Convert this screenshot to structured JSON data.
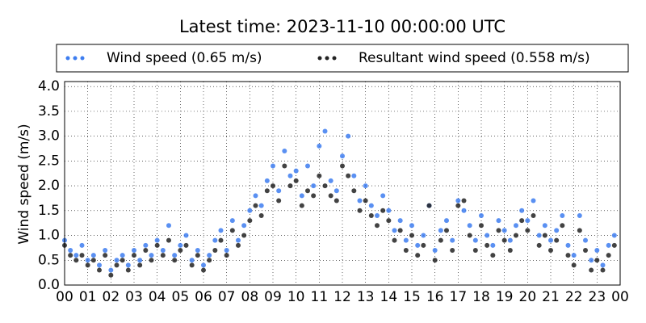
{
  "chart_data": {
    "type": "scatter",
    "title": "Latest time: 2023-11-10 00:00:00 UTC",
    "y_label": "Wind speed (m/s)",
    "xlim": [
      0,
      24
    ],
    "ylim": [
      0,
      4.1
    ],
    "xticks": [
      {
        "value": 0,
        "label": "00"
      },
      {
        "value": 1,
        "label": "01"
      },
      {
        "value": 2,
        "label": "02"
      },
      {
        "value": 3,
        "label": "03"
      },
      {
        "value": 4,
        "label": "04"
      },
      {
        "value": 5,
        "label": "05"
      },
      {
        "value": 6,
        "label": "06"
      },
      {
        "value": 7,
        "label": "07"
      },
      {
        "value": 8,
        "label": "08"
      },
      {
        "value": 9,
        "label": "09"
      },
      {
        "value": 10,
        "label": "10"
      },
      {
        "value": 11,
        "label": "11"
      },
      {
        "value": 12,
        "label": "12"
      },
      {
        "value": 13,
        "label": "13"
      },
      {
        "value": 14,
        "label": "14"
      },
      {
        "value": 15,
        "label": "15"
      },
      {
        "value": 16,
        "label": "16"
      },
      {
        "value": 17,
        "label": "17"
      },
      {
        "value": 18,
        "label": "18"
      },
      {
        "value": 19,
        "label": "19"
      },
      {
        "value": 20,
        "label": "20"
      },
      {
        "value": 21,
        "label": "21"
      },
      {
        "value": 22,
        "label": "22"
      },
      {
        "value": 23,
        "label": "23"
      },
      {
        "value": 24,
        "label": "00"
      }
    ],
    "yticks": [
      {
        "value": 0,
        "label": "0.0"
      },
      {
        "value": 0.5,
        "label": "0.5"
      },
      {
        "value": 1,
        "label": "1.0"
      },
      {
        "value": 1.5,
        "label": "1.5"
      },
      {
        "value": 2,
        "label": "2.0"
      },
      {
        "value": 2.5,
        "label": "2.5"
      },
      {
        "value": 3,
        "label": "3.0"
      },
      {
        "value": 3.5,
        "label": "3.5"
      },
      {
        "value": 4,
        "label": "4.0"
      }
    ],
    "grid": true,
    "x": [
      0,
      0.25,
      0.5,
      0.75,
      1,
      1.25,
      1.5,
      1.75,
      2,
      2.25,
      2.5,
      2.75,
      3,
      3.25,
      3.5,
      3.75,
      4,
      4.25,
      4.5,
      4.75,
      5,
      5.25,
      5.5,
      5.75,
      6,
      6.25,
      6.5,
      6.75,
      7,
      7.25,
      7.5,
      7.75,
      8,
      8.25,
      8.5,
      8.75,
      9,
      9.25,
      9.5,
      9.75,
      10,
      10.25,
      10.5,
      10.75,
      11,
      11.25,
      11.5,
      11.75,
      12,
      12.25,
      12.5,
      12.75,
      13,
      13.25,
      13.5,
      13.75,
      14,
      14.25,
      14.5,
      14.75,
      15,
      15.25,
      15.5,
      15.75,
      16,
      16.25,
      16.5,
      16.75,
      17,
      17.25,
      17.5,
      17.75,
      18,
      18.25,
      18.5,
      18.75,
      19,
      19.25,
      19.5,
      19.75,
      20,
      20.25,
      20.5,
      20.75,
      21,
      21.25,
      21.5,
      21.75,
      22,
      22.25,
      22.5,
      22.75,
      23,
      23.25,
      23.5,
      23.75
    ],
    "series": [
      {
        "name": "Wind speed (0.65 m/s)",
        "color": "#3d7df0",
        "values": [
          0.9,
          0.7,
          0.6,
          0.8,
          0.5,
          0.6,
          0.4,
          0.7,
          0.3,
          0.5,
          0.6,
          0.4,
          0.7,
          0.5,
          0.8,
          0.6,
          0.9,
          0.7,
          1.2,
          0.6,
          0.8,
          1.0,
          0.5,
          0.7,
          0.4,
          0.6,
          0.9,
          1.1,
          0.7,
          1.3,
          0.9,
          1.2,
          1.5,
          1.8,
          1.6,
          2.1,
          2.4,
          1.9,
          2.7,
          2.2,
          2.3,
          1.8,
          2.4,
          2.0,
          2.8,
          3.1,
          2.1,
          1.9,
          2.6,
          3.0,
          2.2,
          1.7,
          2.0,
          1.6,
          1.4,
          1.8,
          1.5,
          1.1,
          1.3,
          0.9,
          1.2,
          0.8,
          1.0,
          1.6,
          0.7,
          1.1,
          1.3,
          0.9,
          1.7,
          1.5,
          1.2,
          0.9,
          1.4,
          1.0,
          0.8,
          1.3,
          1.1,
          0.9,
          1.2,
          1.5,
          1.3,
          1.7,
          1.0,
          1.2,
          0.9,
          1.1,
          1.4,
          0.8,
          0.6,
          1.4,
          0.9,
          0.5,
          0.7,
          0.4,
          0.8,
          1.0
        ]
      },
      {
        "name": "Resultant wind speed (0.558 m/s)",
        "color": "#222222",
        "values": [
          0.8,
          0.6,
          0.5,
          0.6,
          0.4,
          0.5,
          0.3,
          0.6,
          0.2,
          0.4,
          0.5,
          0.3,
          0.6,
          0.4,
          0.7,
          0.5,
          0.8,
          0.6,
          0.9,
          0.5,
          0.7,
          0.8,
          0.4,
          0.6,
          0.3,
          0.5,
          0.7,
          0.9,
          0.6,
          1.1,
          0.8,
          1.0,
          1.3,
          1.6,
          1.4,
          1.9,
          2.0,
          1.7,
          2.4,
          2.0,
          2.1,
          1.6,
          1.9,
          1.8,
          2.2,
          2.0,
          1.8,
          1.7,
          2.4,
          2.2,
          1.9,
          1.5,
          1.7,
          1.4,
          1.2,
          1.5,
          1.3,
          0.9,
          1.1,
          0.7,
          1.0,
          0.6,
          0.8,
          1.6,
          0.5,
          0.9,
          1.1,
          0.7,
          1.6,
          1.7,
          1.0,
          0.7,
          1.2,
          0.8,
          0.6,
          1.1,
          0.9,
          0.7,
          1.0,
          1.3,
          1.1,
          1.4,
          0.8,
          1.0,
          0.7,
          0.9,
          1.2,
          0.6,
          0.4,
          1.1,
          0.7,
          0.3,
          0.5,
          0.3,
          0.6,
          0.8
        ]
      }
    ]
  }
}
